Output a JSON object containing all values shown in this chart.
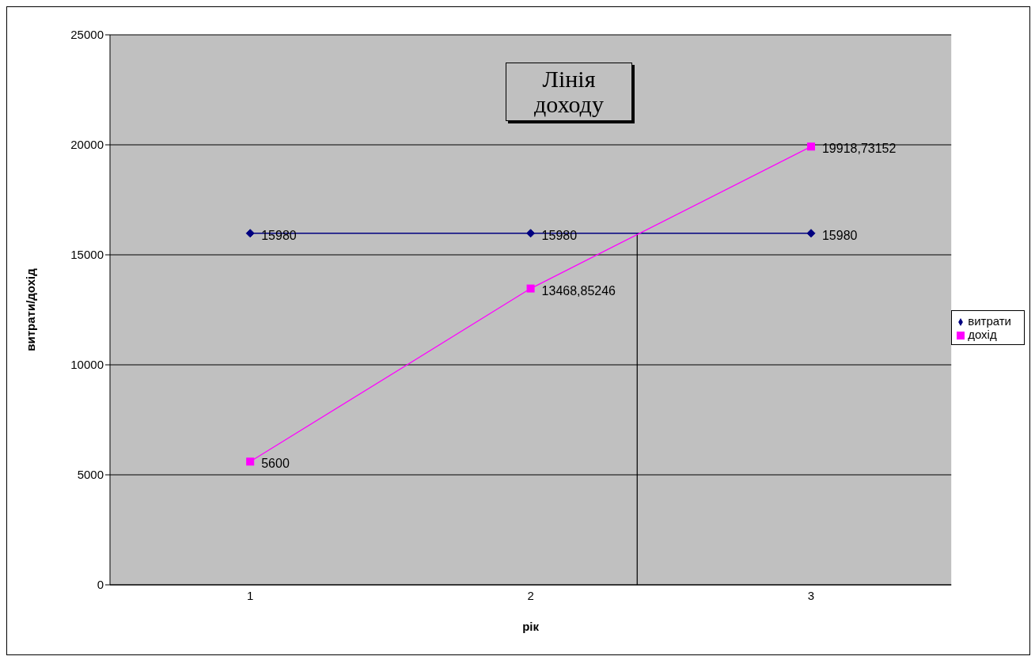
{
  "chart_data": {
    "type": "line",
    "title": "Лінія доходу",
    "xlabel": "рік",
    "ylabel": "витрати/дохід",
    "x": [
      1,
      2,
      3
    ],
    "xlim": [
      0.5,
      3.5
    ],
    "xticks": [
      1,
      2,
      3
    ],
    "ylim": [
      0,
      25000
    ],
    "yticks": [
      0,
      5000,
      10000,
      15000,
      20000,
      25000
    ],
    "series": [
      {
        "name": "витрати",
        "color": "#000080",
        "marker": "diamond",
        "values": [
          15980,
          15980,
          15980
        ],
        "value_labels": [
          "15980",
          "15980",
          "15980"
        ]
      },
      {
        "name": "дохід",
        "color": "#ff00ff",
        "marker": "square",
        "values": [
          5600,
          13468.85246,
          19918.73152
        ],
        "value_labels": [
          "5600",
          "13468,85246",
          "19918,73152"
        ]
      }
    ],
    "ref_lines": [
      {
        "axis": "x",
        "value": 2.38,
        "color": "#000000"
      }
    ],
    "grid": "y",
    "legend": "right"
  }
}
